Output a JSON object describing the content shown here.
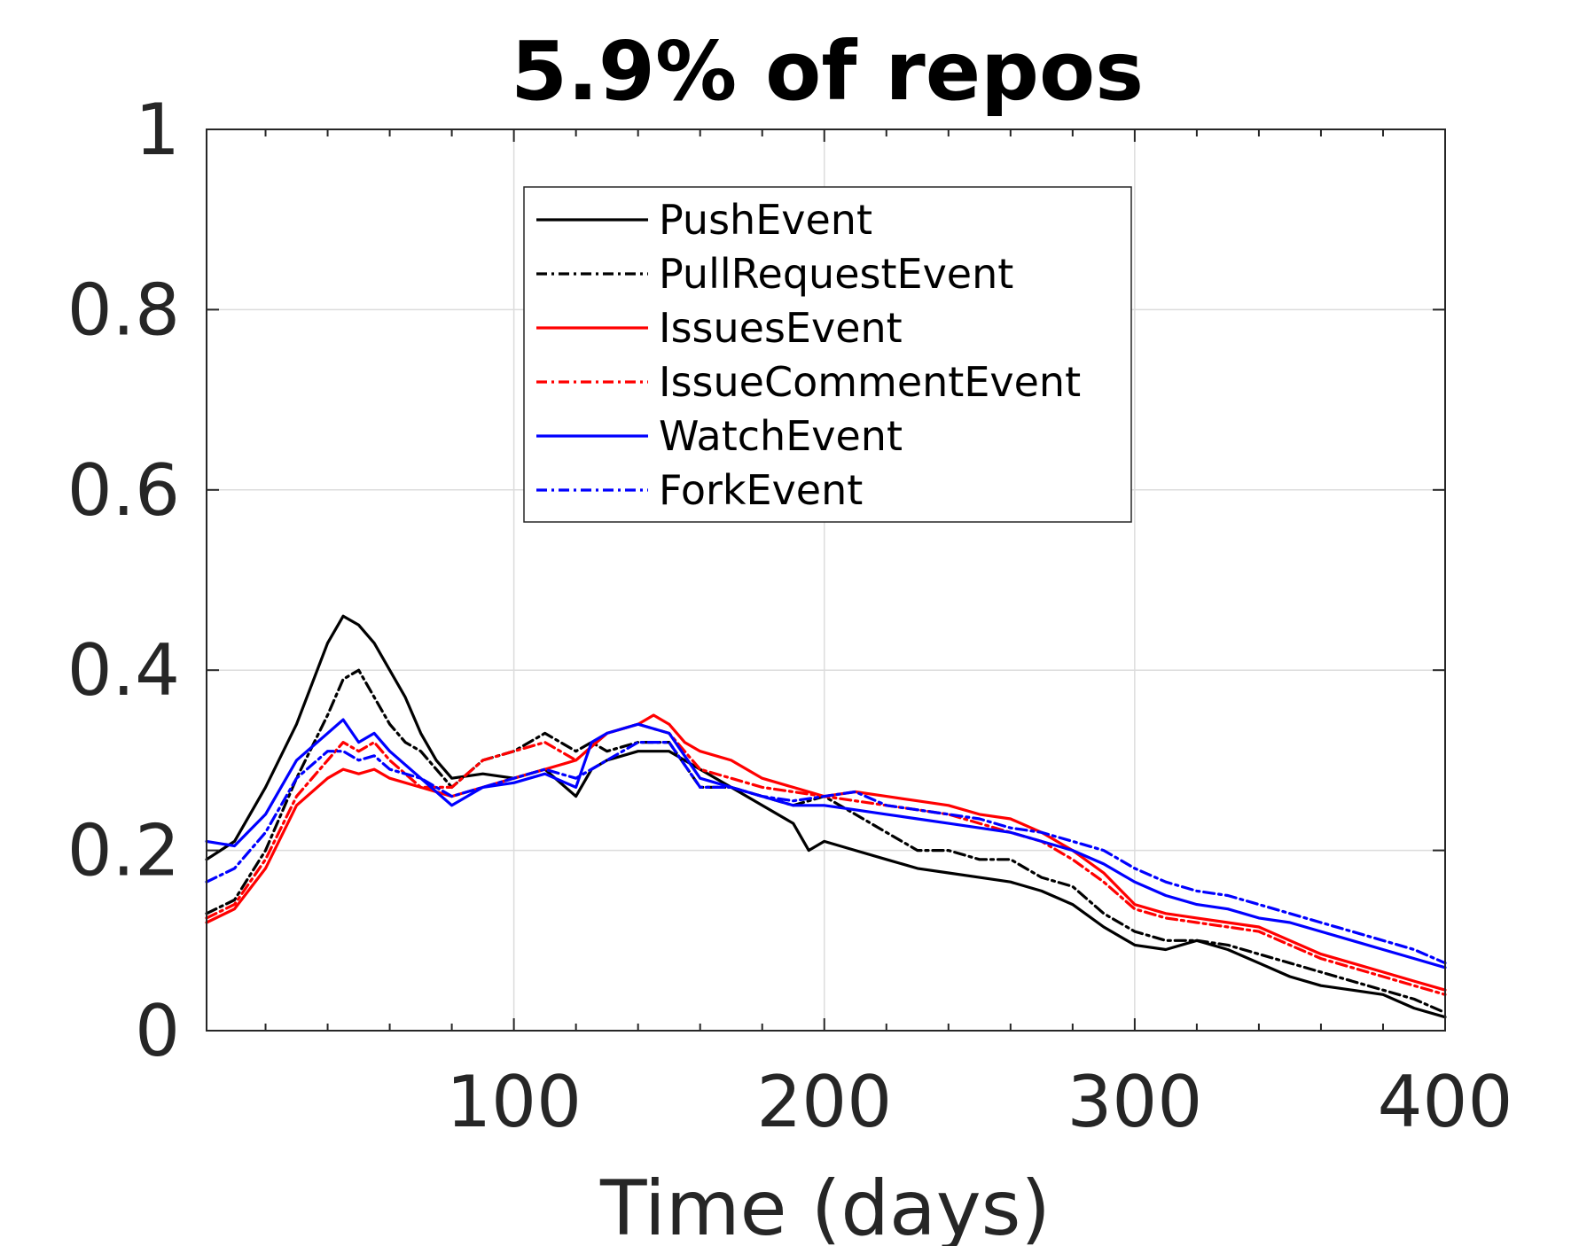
{
  "chart_data": {
    "type": "line",
    "title": "5.9% of repos",
    "xlabel": "Time (days)",
    "ylabel": "",
    "xlim": [
      1,
      400
    ],
    "ylim": [
      0,
      1
    ],
    "xticks": [
      100,
      200,
      300,
      400
    ],
    "yticks": [
      0,
      0.2,
      0.4,
      0.6,
      0.8,
      1
    ],
    "xtick_labels": [
      "100",
      "200",
      "300",
      "400"
    ],
    "ytick_labels": [
      "0",
      "0.2",
      "0.4",
      "0.6",
      "0.8",
      "1"
    ],
    "grid": true,
    "legend_position": "top-center",
    "series": [
      {
        "name": "PushEvent",
        "color": "#000000",
        "style": "solid",
        "x": [
          1,
          10,
          20,
          30,
          40,
          45,
          50,
          55,
          60,
          65,
          70,
          75,
          80,
          90,
          100,
          110,
          120,
          125,
          130,
          140,
          150,
          160,
          170,
          180,
          190,
          195,
          200,
          210,
          220,
          230,
          240,
          250,
          260,
          270,
          280,
          290,
          300,
          310,
          320,
          330,
          340,
          350,
          360,
          370,
          380,
          390,
          400
        ],
        "y": [
          0.19,
          0.21,
          0.27,
          0.34,
          0.43,
          0.46,
          0.45,
          0.43,
          0.4,
          0.37,
          0.33,
          0.3,
          0.28,
          0.285,
          0.28,
          0.29,
          0.26,
          0.29,
          0.3,
          0.31,
          0.31,
          0.29,
          0.27,
          0.25,
          0.23,
          0.2,
          0.21,
          0.2,
          0.19,
          0.18,
          0.175,
          0.17,
          0.165,
          0.155,
          0.14,
          0.115,
          0.095,
          0.09,
          0.1,
          0.09,
          0.075,
          0.06,
          0.05,
          0.045,
          0.04,
          0.025,
          0.015
        ]
      },
      {
        "name": "PullRequestEvent",
        "color": "#000000",
        "style": "dashdot",
        "x": [
          1,
          10,
          20,
          30,
          40,
          45,
          50,
          55,
          60,
          65,
          70,
          75,
          80,
          90,
          100,
          110,
          120,
          125,
          130,
          140,
          150,
          160,
          170,
          180,
          190,
          200,
          210,
          220,
          230,
          240,
          250,
          260,
          270,
          280,
          290,
          300,
          310,
          320,
          330,
          340,
          350,
          360,
          370,
          380,
          390,
          400
        ],
        "y": [
          0.13,
          0.145,
          0.2,
          0.28,
          0.35,
          0.39,
          0.4,
          0.37,
          0.34,
          0.32,
          0.31,
          0.29,
          0.27,
          0.3,
          0.31,
          0.33,
          0.31,
          0.32,
          0.31,
          0.32,
          0.32,
          0.27,
          0.27,
          0.26,
          0.25,
          0.26,
          0.24,
          0.22,
          0.2,
          0.2,
          0.19,
          0.19,
          0.17,
          0.16,
          0.13,
          0.11,
          0.1,
          0.1,
          0.095,
          0.085,
          0.075,
          0.065,
          0.055,
          0.045,
          0.035,
          0.02
        ]
      },
      {
        "name": "IssuesEvent",
        "color": "#ff0000",
        "style": "solid",
        "x": [
          1,
          10,
          20,
          30,
          40,
          45,
          50,
          55,
          60,
          70,
          80,
          90,
          100,
          110,
          120,
          130,
          140,
          145,
          150,
          155,
          160,
          170,
          180,
          190,
          200,
          210,
          220,
          230,
          240,
          250,
          260,
          270,
          280,
          290,
          300,
          310,
          320,
          330,
          340,
          350,
          360,
          370,
          380,
          390,
          400
        ],
        "y": [
          0.12,
          0.135,
          0.18,
          0.25,
          0.28,
          0.29,
          0.285,
          0.29,
          0.28,
          0.27,
          0.26,
          0.27,
          0.28,
          0.29,
          0.3,
          0.33,
          0.34,
          0.35,
          0.34,
          0.32,
          0.31,
          0.3,
          0.28,
          0.27,
          0.26,
          0.265,
          0.26,
          0.255,
          0.25,
          0.24,
          0.235,
          0.22,
          0.2,
          0.175,
          0.14,
          0.13,
          0.125,
          0.12,
          0.115,
          0.1,
          0.085,
          0.075,
          0.065,
          0.055,
          0.045
        ]
      },
      {
        "name": "IssueCommentEvent",
        "color": "#ff0000",
        "style": "dashdot",
        "x": [
          1,
          10,
          20,
          30,
          40,
          45,
          50,
          55,
          60,
          70,
          80,
          90,
          100,
          110,
          120,
          130,
          140,
          150,
          160,
          170,
          180,
          190,
          200,
          210,
          220,
          230,
          240,
          250,
          260,
          270,
          280,
          290,
          300,
          310,
          320,
          330,
          340,
          350,
          360,
          370,
          380,
          390,
          400
        ],
        "y": [
          0.125,
          0.14,
          0.19,
          0.26,
          0.3,
          0.32,
          0.31,
          0.32,
          0.3,
          0.27,
          0.27,
          0.3,
          0.31,
          0.32,
          0.3,
          0.33,
          0.34,
          0.33,
          0.29,
          0.28,
          0.27,
          0.265,
          0.26,
          0.255,
          0.25,
          0.245,
          0.24,
          0.23,
          0.22,
          0.21,
          0.19,
          0.165,
          0.135,
          0.125,
          0.12,
          0.115,
          0.11,
          0.095,
          0.08,
          0.07,
          0.06,
          0.05,
          0.04
        ]
      },
      {
        "name": "WatchEvent",
        "color": "#0000ff",
        "style": "solid",
        "x": [
          1,
          10,
          20,
          30,
          40,
          45,
          50,
          55,
          60,
          70,
          80,
          90,
          100,
          110,
          120,
          125,
          130,
          140,
          150,
          160,
          170,
          180,
          190,
          200,
          210,
          220,
          230,
          240,
          250,
          260,
          270,
          280,
          290,
          300,
          310,
          320,
          330,
          340,
          350,
          360,
          370,
          380,
          390,
          400
        ],
        "y": [
          0.21,
          0.205,
          0.24,
          0.3,
          0.33,
          0.345,
          0.32,
          0.33,
          0.31,
          0.28,
          0.25,
          0.27,
          0.275,
          0.285,
          0.27,
          0.32,
          0.33,
          0.34,
          0.33,
          0.28,
          0.27,
          0.26,
          0.25,
          0.25,
          0.245,
          0.24,
          0.235,
          0.23,
          0.225,
          0.22,
          0.21,
          0.2,
          0.185,
          0.165,
          0.15,
          0.14,
          0.135,
          0.125,
          0.12,
          0.11,
          0.1,
          0.09,
          0.08,
          0.07
        ]
      },
      {
        "name": "ForkEvent",
        "color": "#0000ff",
        "style": "dashdot",
        "x": [
          1,
          10,
          20,
          30,
          40,
          45,
          50,
          55,
          60,
          70,
          80,
          90,
          100,
          110,
          120,
          130,
          140,
          150,
          160,
          170,
          180,
          190,
          200,
          210,
          220,
          230,
          240,
          250,
          260,
          270,
          280,
          290,
          300,
          310,
          320,
          330,
          340,
          350,
          360,
          370,
          380,
          390,
          400
        ],
        "y": [
          0.165,
          0.18,
          0.22,
          0.28,
          0.31,
          0.31,
          0.3,
          0.305,
          0.29,
          0.28,
          0.26,
          0.27,
          0.28,
          0.29,
          0.28,
          0.3,
          0.32,
          0.32,
          0.27,
          0.27,
          0.26,
          0.255,
          0.26,
          0.265,
          0.25,
          0.245,
          0.24,
          0.235,
          0.225,
          0.22,
          0.21,
          0.2,
          0.18,
          0.165,
          0.155,
          0.15,
          0.14,
          0.13,
          0.12,
          0.11,
          0.1,
          0.09,
          0.075
        ]
      }
    ]
  }
}
